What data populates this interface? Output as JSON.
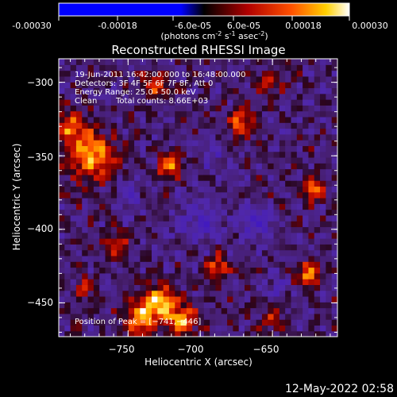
{
  "colorbar": {
    "ticks": [
      "-0.00030",
      "-0.00018",
      "-6.0e-05",
      "6.0e-05",
      "0.00018",
      "0.00030"
    ],
    "label_pre": "(photons cm",
    "label_e1": "-2",
    "label_mid": " s",
    "label_e2": "-1",
    "label_post": " asec",
    "label_e3": "-2",
    "label_close": ")"
  },
  "chart_data": {
    "type": "heatmap",
    "title": "Reconstructed RHESSI Image",
    "xlabel": "Heliocentric X (arcsec)",
    "ylabel": "Heliocentric Y (arcsec)",
    "xlim": [
      -798,
      -605
    ],
    "ylim": [
      -473,
      -284
    ],
    "x_ticks": [
      -750,
      -700,
      -650
    ],
    "y_ticks": [
      -300,
      -350,
      -400,
      -450
    ],
    "x_tick_labels": [
      "−750",
      "−700",
      "−650"
    ],
    "y_tick_labels": [
      "−300",
      "−350",
      "−400",
      "−450"
    ],
    "colorbar_range": [
      -0.0003,
      0.0003
    ],
    "peak": [
      -741,
      -446
    ],
    "blobs": [
      {
        "x": -775,
        "y": -350,
        "v": 0.00026,
        "s": 16
      },
      {
        "x": -790,
        "y": -330,
        "v": 0.00022,
        "s": 10
      },
      {
        "x": -728,
        "y": -450,
        "v": 0.00029,
        "s": 12
      },
      {
        "x": -742,
        "y": -462,
        "v": 0.00027,
        "s": 10
      },
      {
        "x": -712,
        "y": -462,
        "v": 0.00025,
        "s": 9
      },
      {
        "x": -722,
        "y": -357,
        "v": 0.00022,
        "s": 8
      },
      {
        "x": -730,
        "y": -300,
        "v": 0.0002,
        "s": 9
      },
      {
        "x": -672,
        "y": -327,
        "v": 0.00021,
        "s": 9
      },
      {
        "x": -622,
        "y": -372,
        "v": 0.00024,
        "s": 8
      },
      {
        "x": -625,
        "y": -430,
        "v": 0.00023,
        "s": 8
      },
      {
        "x": -688,
        "y": -425,
        "v": 0.0002,
        "s": 8
      },
      {
        "x": -758,
        "y": -410,
        "v": 0.00016,
        "s": 8
      },
      {
        "x": -780,
        "y": -440,
        "v": 0.00013,
        "s": 8
      },
      {
        "x": -650,
        "y": -460,
        "v": 0.00012,
        "s": 8
      },
      {
        "x": -652,
        "y": -300,
        "v": 0.00011,
        "s": 8
      },
      {
        "x": -700,
        "y": -395,
        "v": -0.00012,
        "s": 16
      },
      {
        "x": -660,
        "y": -395,
        "v": -0.00016,
        "s": 11
      },
      {
        "x": -750,
        "y": -378,
        "v": -0.0001,
        "s": 10
      },
      {
        "x": -690,
        "y": -350,
        "v": -9e-05,
        "s": 10
      },
      {
        "x": -648,
        "y": -440,
        "v": -8e-05,
        "s": 9
      }
    ]
  },
  "annotations": {
    "line1": "19-Jun-2011 16:42:00.000 to 16:48:00.000",
    "line2": "Detectors: 3F 4F 5F 6F 7F 8F, Att 0",
    "line3": "Energy Range: 25.0 - 50.0 keV",
    "line4a": "Clean",
    "line4b": "Total counts: 8.66E+03",
    "peak_label": "Position of Peak = [−741,−446]"
  },
  "footer": {
    "date": "12-May-2022 02:58"
  }
}
